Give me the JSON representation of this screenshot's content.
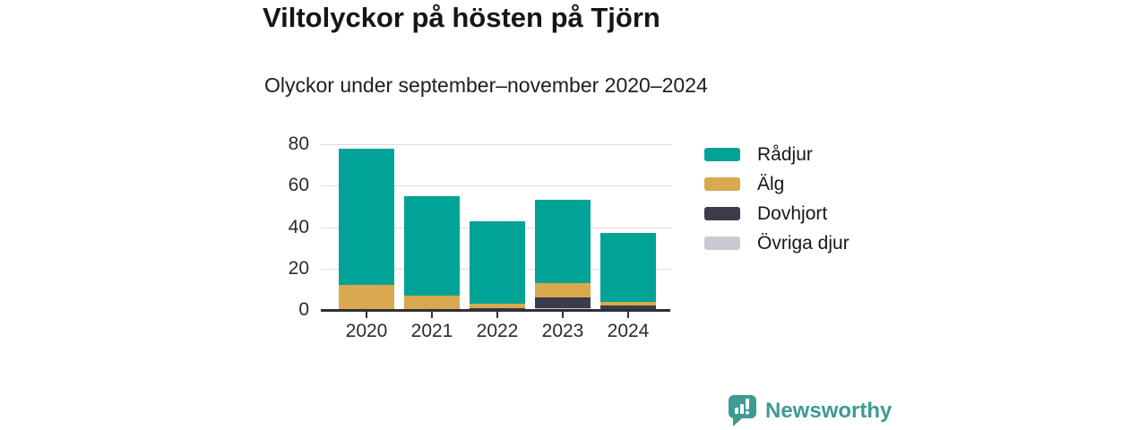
{
  "header": {
    "title": "Viltolyckor på hösten på Tjörn",
    "subtitle": "Olyckor under september–november 2020–2024"
  },
  "chart_data": {
    "type": "bar",
    "stacked": true,
    "title": "Viltolyckor på hösten på Tjörn",
    "subtitle": "Olyckor under september–november 2020–2024",
    "categories": [
      "2020",
      "2021",
      "2022",
      "2023",
      "2024"
    ],
    "series": [
      {
        "name": "Rådjur",
        "color": "#00a396",
        "values": [
          66,
          48,
          40,
          40,
          33
        ]
      },
      {
        "name": "Älg",
        "color": "#d9a84f",
        "values": [
          12,
          7,
          2,
          7,
          2
        ]
      },
      {
        "name": "Dovhjort",
        "color": "#3c3c4c",
        "values": [
          0,
          0,
          1,
          5,
          2
        ]
      },
      {
        "name": "Övriga djur",
        "color": "#c9c9d4",
        "values": [
          0,
          0,
          0,
          1,
          0
        ]
      }
    ],
    "stack_order_bottom_to_top": [
      "Övriga djur",
      "Dovhjort",
      "Älg",
      "Rådjur"
    ],
    "totals": [
      78,
      55,
      43,
      53,
      37
    ],
    "yticks": [
      0,
      20,
      40,
      60,
      80
    ],
    "ylim": [
      0,
      80
    ],
    "xlabel": "",
    "ylabel": "",
    "grid": true,
    "legend_position": "right"
  },
  "footer": {
    "brand": "Newsworthy",
    "brand_color": "#3d9b94"
  }
}
